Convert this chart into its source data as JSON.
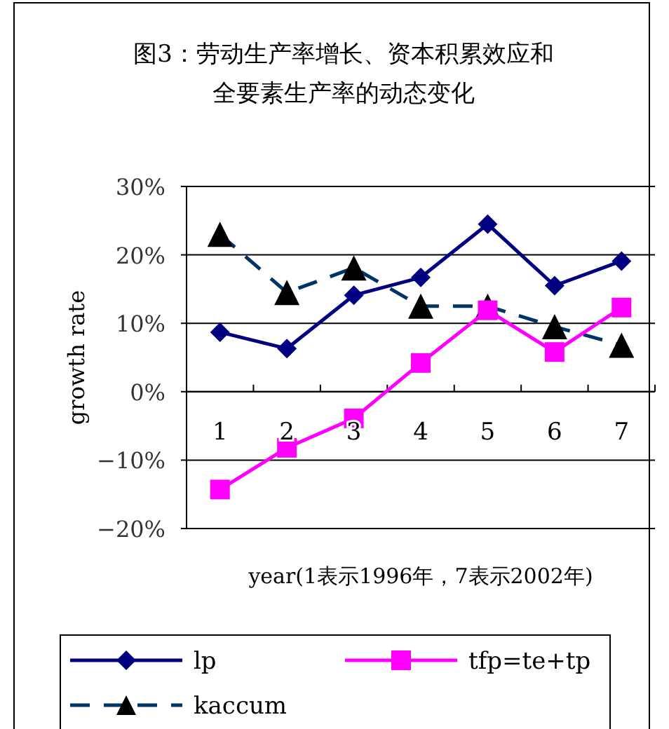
{
  "chart_data": {
    "type": "line",
    "title": "图3：劳动生产率增长、资本积累效应和全要素生产率的动态变化",
    "xlabel": "year(1表示1996年，7表示2002年)",
    "ylabel": "growth rate",
    "categories": [
      "1",
      "2",
      "3",
      "4",
      "5",
      "6",
      "7"
    ],
    "series": [
      {
        "name": "lp",
        "color": "#000080",
        "marker": "diamond",
        "line_style": "solid",
        "values": [
          8.7,
          6.3,
          14.1,
          16.7,
          24.5,
          15.5,
          19.1
        ]
      },
      {
        "name": "tfp=te+tp",
        "color": "#ff00ff",
        "marker": "square",
        "line_style": "solid",
        "values": [
          -14.3,
          -8.2,
          -3.9,
          4.2,
          11.9,
          5.8,
          12.3
        ]
      },
      {
        "name": "kaccum",
        "color": "#003366",
        "colors": [
          "#000000",
          "#000000",
          "#000000",
          "#000000",
          "#000000",
          "#000000",
          "#000000"
        ],
        "marker": "triangle",
        "line_style": "dashed",
        "values": [
          23.0,
          14.5,
          18.1,
          12.5,
          12.5,
          9.5,
          6.8
        ]
      }
    ],
    "ylim": [
      -20,
      30
    ],
    "yticks": [
      {
        "value": -20,
        "label": "−20%"
      },
      {
        "value": -10,
        "label": "−10%"
      },
      {
        "value": 0,
        "label": "0%"
      },
      {
        "value": 10,
        "label": "10%"
      },
      {
        "value": 20,
        "label": "20%"
      },
      {
        "value": 30,
        "label": "30%"
      }
    ],
    "grid": "y",
    "legend": "bottom"
  }
}
